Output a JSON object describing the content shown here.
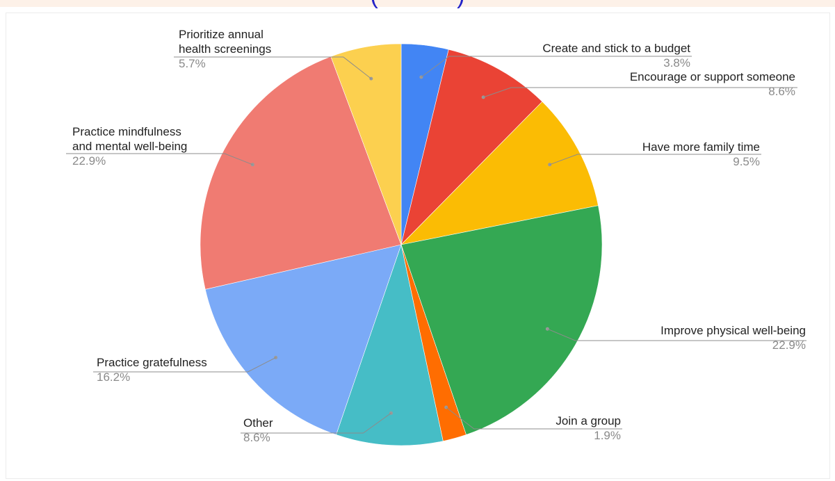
{
  "top_cut_text": "(            )",
  "chart_data": {
    "type": "pie",
    "title": "",
    "start_angle_deg": 0,
    "direction": "clockwise",
    "slices": [
      {
        "label": "Create and stick to a budget",
        "value": 3.8,
        "display": "3.8%",
        "color": "#4285f4"
      },
      {
        "label": "Encourage or support someone",
        "value": 8.6,
        "display": "8.6%",
        "color": "#ea4335"
      },
      {
        "label": "Have more family time",
        "value": 9.5,
        "display": "9.5%",
        "color": "#fbbc04"
      },
      {
        "label": "Improve physical well-being",
        "value": 22.9,
        "display": "22.9%",
        "color": "#34a853"
      },
      {
        "label": "Join a group",
        "value": 1.9,
        "display": "1.9%",
        "color": "#ff6d01"
      },
      {
        "label": "Other",
        "value": 8.6,
        "display": "8.6%",
        "color": "#46bdc6"
      },
      {
        "label": "Practice gratefulness",
        "value": 16.2,
        "display": "16.2%",
        "color": "#7baaf7"
      },
      {
        "label": "Practice mindfulness\nand mental well-being",
        "value": 22.9,
        "display": "22.9%",
        "color": "#f07b72"
      },
      {
        "label": "Prioritize annual\nhealth screenings",
        "value": 5.7,
        "display": "5.7%",
        "color": "#fcd04f"
      }
    ]
  }
}
